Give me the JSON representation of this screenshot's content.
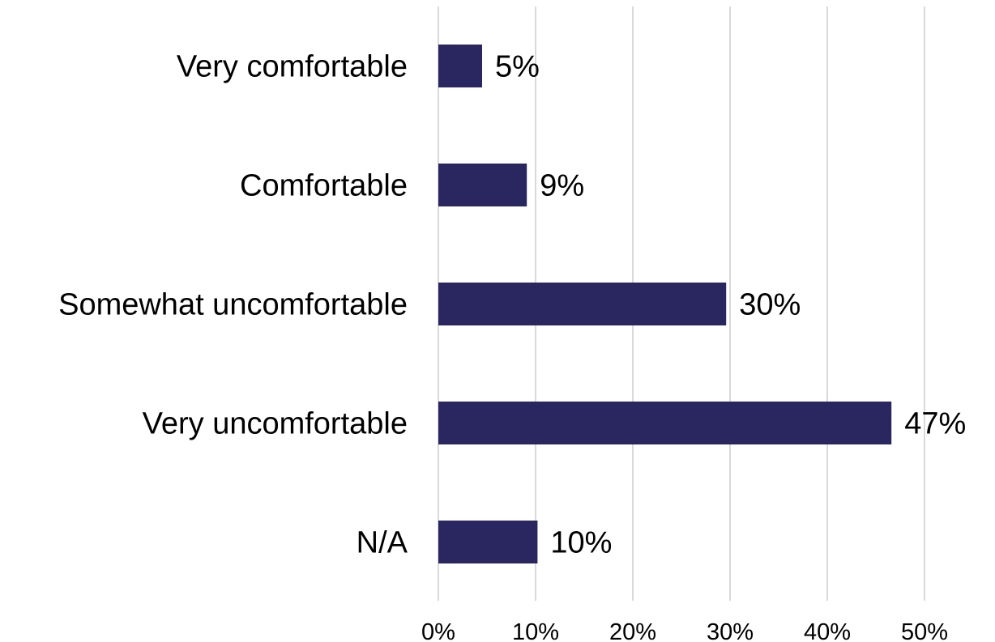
{
  "chart_data": {
    "type": "bar",
    "orientation": "horizontal",
    "categories": [
      "Very comfortable",
      "Comfortable",
      "Somewhat uncomfortable",
      "Very uncomfortable",
      "N/A"
    ],
    "values": [
      4.5,
      9.1,
      29.6,
      46.6,
      10.2
    ],
    "data_labels": [
      "5%",
      "9%",
      "30%",
      "47%",
      "10%"
    ],
    "xlim": [
      0,
      50
    ],
    "ticks": [
      0,
      10,
      20,
      30,
      40,
      50
    ],
    "tick_labels": [
      "0%",
      "10%",
      "20%",
      "30%",
      "40%",
      "50%"
    ],
    "title": "",
    "xlabel": "",
    "ylabel": "",
    "grid": "vertical",
    "legend": "none",
    "bar_color": "#2a2660"
  }
}
